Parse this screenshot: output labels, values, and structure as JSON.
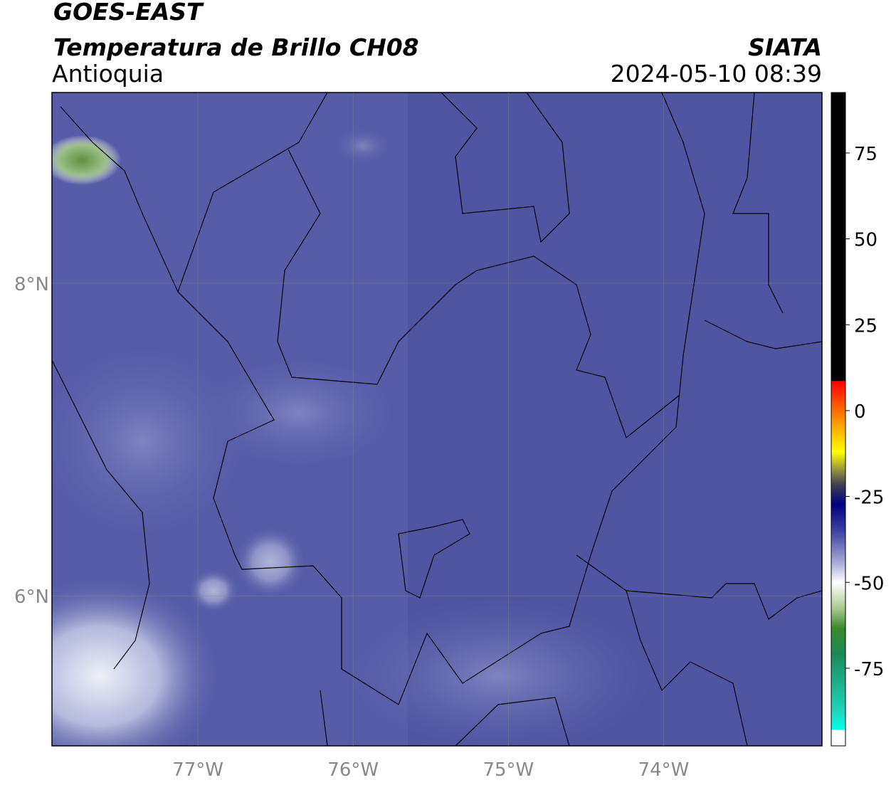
{
  "header": {
    "satellite": "GOES-EAST",
    "product": "Temperatura de Brillo CH08",
    "region": "Antioquia",
    "source": "SIATA",
    "timestamp": "2024-05-10 08:39"
  },
  "map": {
    "xlim": [
      -77.94,
      -72.98
    ],
    "ylim": [
      5.04,
      9.22
    ],
    "xticks": [
      {
        "value": -77,
        "label": "77°W"
      },
      {
        "value": -76,
        "label": "76°W"
      },
      {
        "value": -75,
        "label": "75°W"
      },
      {
        "value": -74,
        "label": "74°W"
      }
    ],
    "yticks": [
      {
        "value": 6,
        "label": "6°N"
      },
      {
        "value": 8,
        "label": "8°N"
      }
    ],
    "grid": true
  },
  "colorbar": {
    "lim": [
      -97.6,
      92.6
    ],
    "ticks": [
      75,
      50,
      25,
      0,
      -25,
      -50,
      -75
    ]
  }
}
